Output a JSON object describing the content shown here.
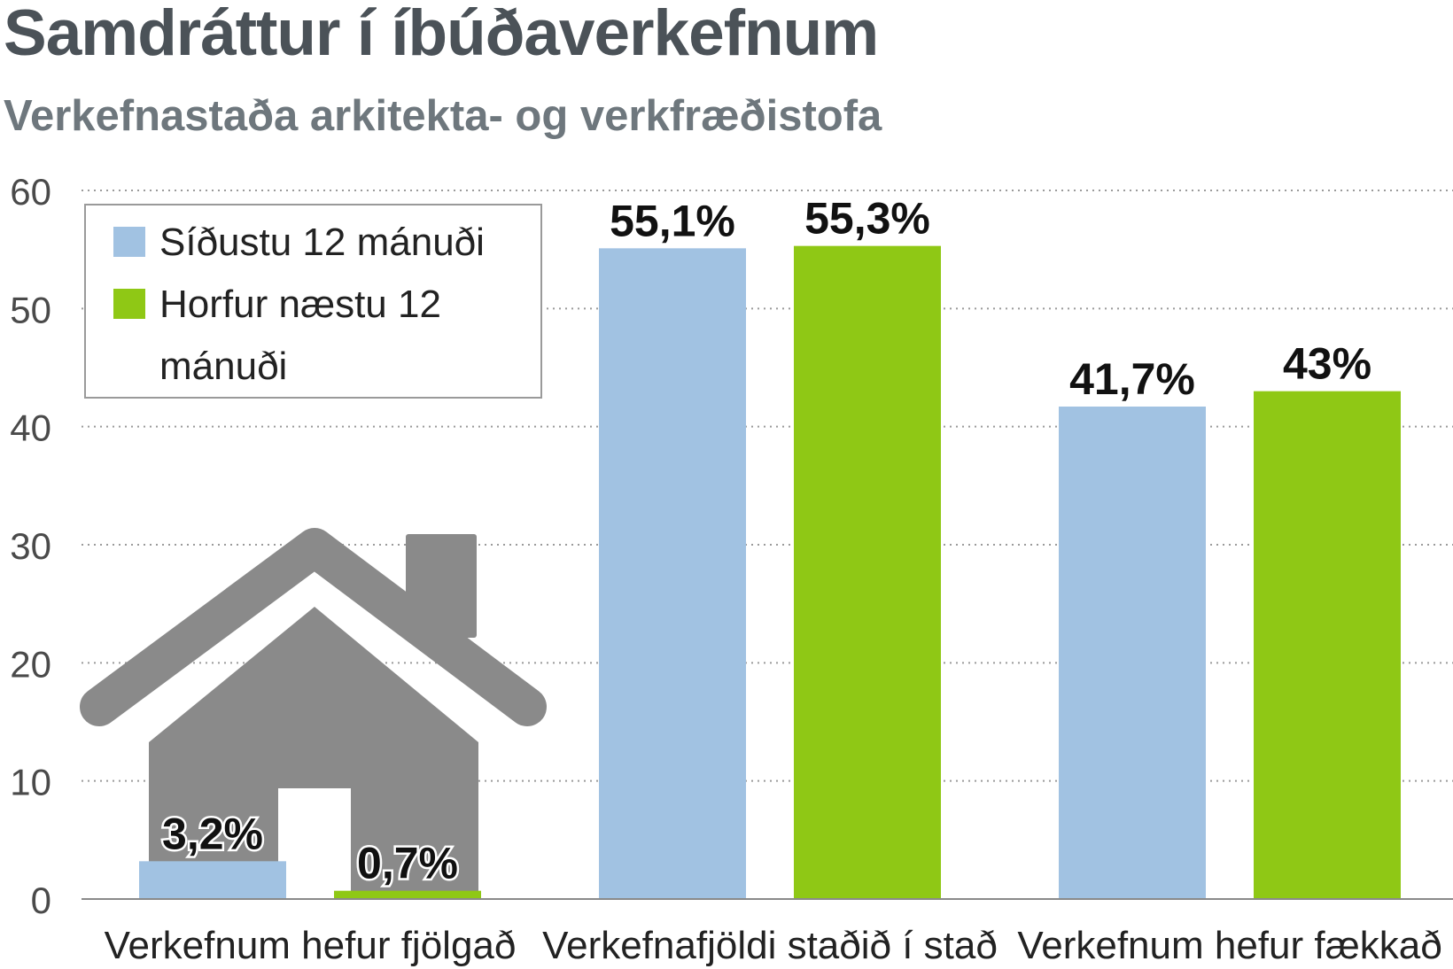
{
  "title": "Samdráttur í íbúðaverkefnum",
  "subtitle": "Verkefnastaða arkitekta- og verkfræðistofa",
  "chart_data": {
    "type": "bar",
    "title": "Samdráttur í íbúðaverkefnum",
    "subtitle": "Verkefnastaða arkitekta- og verkfræðistofa",
    "xlabel": "",
    "ylabel": "",
    "ylim": [
      0,
      60
    ],
    "yticks": [
      "0",
      "10",
      "20",
      "30",
      "40",
      "50",
      "60"
    ],
    "grid": true,
    "legend_position": "top-left",
    "categories": [
      "Verkefnum hefur fjölgað",
      "Verkefnafjöldi staðið í stað",
      "Verkefnum hefur fækkað"
    ],
    "series": [
      {
        "name": "Síðustu 12 mánuði",
        "color": "#a1c2e2",
        "values": [
          3.2,
          55.1,
          41.7
        ],
        "labels": [
          "3,2%",
          "55,1%",
          "41,7%"
        ]
      },
      {
        "name": "Horfur næstu 12 mánuði",
        "color": "#8fc815",
        "values": [
          0.7,
          55.3,
          43
        ],
        "labels": [
          "0,7%",
          "55,3%",
          "43%"
        ]
      }
    ],
    "legend_lines": [
      [
        "Síðustu 12 mánuði"
      ],
      [
        "Horfur næstu 12",
        "mánuði"
      ]
    ],
    "decoration": "house-icon"
  }
}
